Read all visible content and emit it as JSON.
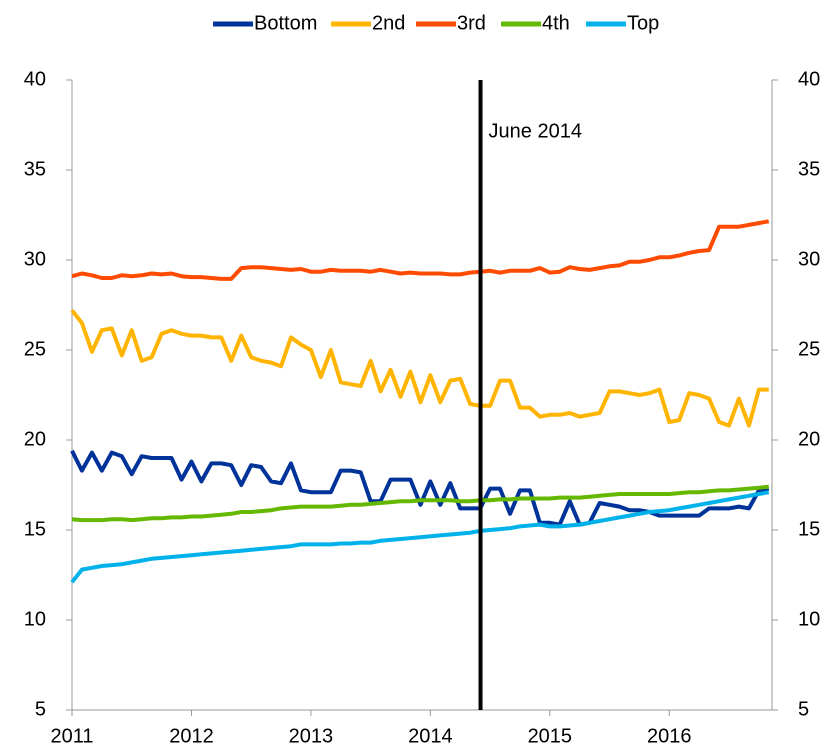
{
  "chart_data": {
    "type": "line",
    "x": [
      2011,
      2011.083,
      2011.167,
      2011.25,
      2011.333,
      2011.417,
      2011.5,
      2011.583,
      2011.667,
      2011.75,
      2011.833,
      2011.917,
      2012,
      2012.083,
      2012.167,
      2012.25,
      2012.333,
      2012.417,
      2012.5,
      2012.583,
      2012.667,
      2012.75,
      2012.833,
      2012.917,
      2013,
      2013.083,
      2013.167,
      2013.25,
      2013.333,
      2013.417,
      2013.5,
      2013.583,
      2013.667,
      2013.75,
      2013.833,
      2013.917,
      2014,
      2014.083,
      2014.167,
      2014.25,
      2014.333,
      2014.417,
      2014.5,
      2014.583,
      2014.667,
      2014.75,
      2014.833,
      2014.917,
      2015,
      2015.083,
      2015.167,
      2015.25,
      2015.333,
      2015.417,
      2015.5,
      2015.583,
      2015.667,
      2015.75,
      2015.833,
      2015.917,
      2016,
      2016.083,
      2016.167,
      2016.25,
      2016.333,
      2016.417,
      2016.5,
      2016.583,
      2016.667,
      2016.75,
      2016.833
    ],
    "series": [
      {
        "name": "Bottom",
        "color": "#003399",
        "values": [
          19.4,
          18.3,
          19.3,
          18.3,
          19.3,
          19.1,
          18.1,
          19.1,
          19.0,
          19.0,
          19.0,
          17.8,
          18.8,
          17.7,
          18.7,
          18.7,
          18.6,
          17.5,
          18.6,
          18.5,
          17.7,
          17.6,
          18.7,
          17.2,
          17.1,
          17.1,
          17.1,
          18.3,
          18.3,
          18.2,
          16.6,
          16.6,
          17.8,
          17.8,
          17.8,
          16.4,
          17.7,
          16.4,
          17.6,
          16.2,
          16.2,
          16.2,
          17.3,
          17.3,
          15.9,
          17.2,
          17.2,
          15.4,
          15.4,
          15.3,
          16.6,
          15.3,
          15.4,
          16.5,
          16.4,
          16.3,
          16.1,
          16.1,
          16.0,
          15.8,
          15.8,
          15.8,
          15.8,
          15.8,
          16.2,
          16.2,
          16.2,
          16.3,
          16.2,
          17.2,
          17.3
        ]
      },
      {
        "name": "2nd",
        "color": "#ffb400",
        "values": [
          27.2,
          26.5,
          24.9,
          26.1,
          26.2,
          24.7,
          26.1,
          24.4,
          24.6,
          25.9,
          26.1,
          25.9,
          25.8,
          25.8,
          25.7,
          25.7,
          24.4,
          25.8,
          24.6,
          24.4,
          24.3,
          24.1,
          25.7,
          25.3,
          25.0,
          23.5,
          25.0,
          23.2,
          23.1,
          23.0,
          24.4,
          22.7,
          23.9,
          22.4,
          23.8,
          22.1,
          23.6,
          22.1,
          23.3,
          23.4,
          22.0,
          21.9,
          21.9,
          23.3,
          23.3,
          21.8,
          21.8,
          21.3,
          21.4,
          21.4,
          21.5,
          21.3,
          21.4,
          21.5,
          22.7,
          22.7,
          22.6,
          22.5,
          22.6,
          22.8,
          21.0,
          21.1,
          22.6,
          22.5,
          22.3,
          21.0,
          20.8,
          22.3,
          20.8,
          22.8,
          22.8
        ]
      },
      {
        "name": "3rd",
        "color": "#ff4b00",
        "values": [
          29.1,
          29.25,
          29.15,
          29.0,
          29.0,
          29.15,
          29.1,
          29.15,
          29.25,
          29.2,
          29.25,
          29.1,
          29.05,
          29.05,
          29.0,
          28.95,
          28.95,
          29.55,
          29.6,
          29.6,
          29.55,
          29.5,
          29.45,
          29.5,
          29.35,
          29.35,
          29.45,
          29.4,
          29.4,
          29.4,
          29.35,
          29.45,
          29.35,
          29.25,
          29.3,
          29.25,
          29.25,
          29.25,
          29.2,
          29.2,
          29.3,
          29.35,
          29.4,
          29.3,
          29.4,
          29.4,
          29.4,
          29.55,
          29.3,
          29.35,
          29.6,
          29.5,
          29.45,
          29.55,
          29.65,
          29.7,
          29.9,
          29.9,
          30.0,
          30.15,
          30.15,
          30.25,
          30.4,
          30.5,
          30.55,
          31.85,
          31.85,
          31.85,
          31.95,
          32.05,
          32.15
        ]
      },
      {
        "name": "4th",
        "color": "#65b800",
        "values": [
          15.6,
          15.55,
          15.55,
          15.55,
          15.6,
          15.6,
          15.55,
          15.6,
          15.65,
          15.65,
          15.7,
          15.7,
          15.75,
          15.75,
          15.8,
          15.85,
          15.9,
          16.0,
          16.0,
          16.05,
          16.1,
          16.2,
          16.25,
          16.3,
          16.3,
          16.3,
          16.3,
          16.35,
          16.4,
          16.4,
          16.45,
          16.5,
          16.55,
          16.6,
          16.6,
          16.65,
          16.65,
          16.65,
          16.65,
          16.6,
          16.6,
          16.65,
          16.65,
          16.7,
          16.7,
          16.75,
          16.75,
          16.75,
          16.75,
          16.8,
          16.8,
          16.8,
          16.85,
          16.9,
          16.95,
          17.0,
          17.0,
          17.0,
          17.0,
          17.0,
          17.0,
          17.05,
          17.1,
          17.1,
          17.15,
          17.2,
          17.2,
          17.25,
          17.3,
          17.35,
          17.4
        ]
      },
      {
        "name": "Top",
        "color": "#00b1ea",
        "values": [
          12.1,
          12.8,
          12.9,
          13.0,
          13.05,
          13.1,
          13.2,
          13.3,
          13.4,
          13.45,
          13.5,
          13.55,
          13.6,
          13.65,
          13.7,
          13.75,
          13.8,
          13.85,
          13.9,
          13.95,
          14.0,
          14.05,
          14.1,
          14.2,
          14.2,
          14.2,
          14.2,
          14.25,
          14.25,
          14.3,
          14.3,
          14.4,
          14.45,
          14.5,
          14.55,
          14.6,
          14.65,
          14.7,
          14.75,
          14.8,
          14.85,
          14.95,
          15.0,
          15.05,
          15.1,
          15.2,
          15.25,
          15.3,
          15.2,
          15.2,
          15.25,
          15.3,
          15.4,
          15.5,
          15.6,
          15.7,
          15.8,
          15.9,
          16.0,
          16.05,
          16.1,
          16.2,
          16.3,
          16.4,
          16.5,
          16.6,
          16.7,
          16.8,
          16.9,
          17.0,
          17.1
        ]
      }
    ],
    "xlim": [
      2011,
      2016.86
    ],
    "xticks": [
      2011,
      2012,
      2013,
      2014,
      2015,
      2016
    ],
    "ylim": [
      5,
      40
    ],
    "yticks": [
      5,
      10,
      15,
      20,
      25,
      30,
      35,
      40
    ],
    "y2lim": [
      5,
      40
    ],
    "y2ticks": [
      5,
      10,
      15,
      20,
      25,
      30,
      35,
      40
    ],
    "annotations": [
      {
        "text": "June 2014",
        "x": 2014.42
      }
    ],
    "legend": "top",
    "grid": false
  }
}
